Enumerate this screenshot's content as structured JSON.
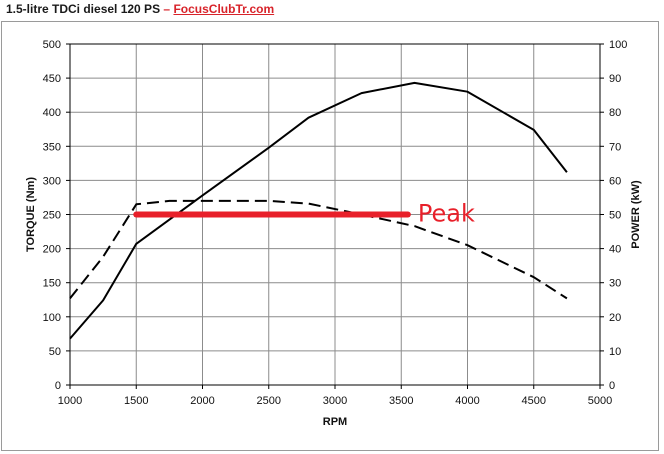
{
  "header": {
    "title": "1.5-litre TDCi diesel 120 PS",
    "separator": "–",
    "site": "FocusClubTr.com"
  },
  "chart_data": {
    "type": "line",
    "title": "",
    "xlabel": "RPM",
    "ylabel": "TORQUE (Nm)",
    "y2label": "POWER (kW)",
    "xlim": [
      1000,
      5000
    ],
    "ylim": [
      0,
      500
    ],
    "y2lim": [
      0,
      100
    ],
    "xticks": [
      1000,
      1500,
      2000,
      2500,
      3000,
      3500,
      4000,
      4500,
      5000
    ],
    "yticks": [
      0,
      50,
      100,
      150,
      200,
      250,
      300,
      350,
      400,
      450,
      500
    ],
    "y2ticks": [
      0,
      10,
      20,
      30,
      40,
      50,
      60,
      70,
      80,
      90,
      100
    ],
    "grid": true,
    "series": [
      {
        "axis": "right",
        "style": "solid",
        "color": "#000000",
        "x": [
          1000,
          1250,
          1500,
          2000,
          2500,
          2800,
          3200,
          3600,
          4000,
          4500,
          4750
        ],
        "y": [
          13.6,
          24.8,
          41.4,
          55.6,
          69.6,
          78.4,
          85.6,
          88.6,
          86.0,
          74.8,
          62.4
        ]
      },
      {
        "axis": "left",
        "style": "dashed",
        "color": "#000000",
        "x": [
          1000,
          1250,
          1500,
          1750,
          2000,
          2500,
          2800,
          3200,
          3600,
          4000,
          4500,
          4750
        ],
        "y": [
          127,
          188,
          265,
          270,
          270,
          270,
          266,
          250,
          233,
          205,
          158,
          127
        ]
      }
    ],
    "annotations": [
      {
        "text": "Peak",
        "color": "#e8202a",
        "x_from": 1500,
        "x_to": 3550,
        "y": 250,
        "axis": "left"
      }
    ]
  }
}
